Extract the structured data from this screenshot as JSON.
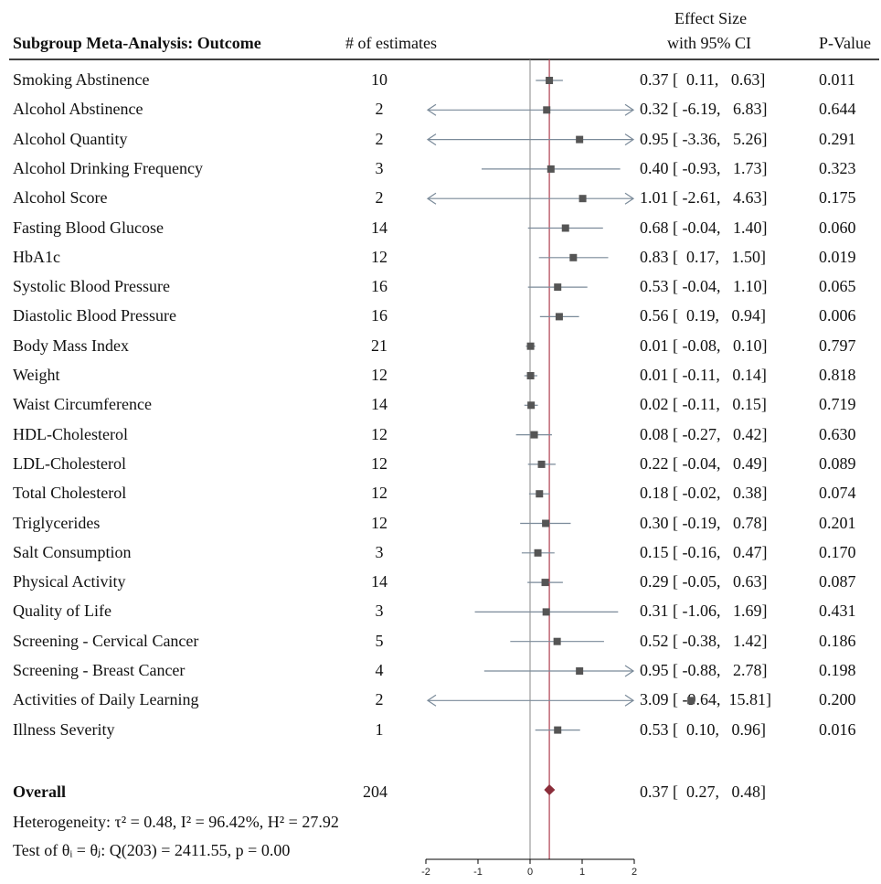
{
  "header": {
    "title": "Subgroup Meta-Analysis: Outcome",
    "n_label": "# of estimates",
    "es_label_1": "Effect Size",
    "es_label_2": "with 95% CI",
    "p_label": "P-Value"
  },
  "overall": {
    "label": "Overall",
    "n": "204",
    "ci_text": "0.37 [  0.27,   0.48]",
    "estimate": 0.37,
    "lower": 0.27,
    "upper": 0.48
  },
  "heterogeneity_text": "Heterogeneity: τ² = 0.48, I² = 96.42%, H² = 27.92",
  "test_text": "Test of θᵢ = θⱼ: Q(203) = 2411.55, p = 0.00",
  "colors": {
    "overall_line": "#b04050",
    "zero_line": "#888888",
    "marker": "#555555",
    "ci_line": "#7a8a99",
    "diamond": "#8b2d3a"
  },
  "chart_data": {
    "type": "forest",
    "xlim": [
      -2,
      2
    ],
    "xticks": [
      "-2",
      "-1",
      "0",
      "1",
      "2"
    ],
    "rows": [
      {
        "label": "Smoking Abstinence",
        "n": "10",
        "est": 0.37,
        "lo": 0.11,
        "hi": 0.63,
        "ci_text": "0.37 [  0.11,   0.63]",
        "p": "0.011"
      },
      {
        "label": "Alcohol Abstinence",
        "n": "2",
        "est": 0.32,
        "lo": -6.19,
        "hi": 6.83,
        "ci_text": "0.32 [ -6.19,   6.83]",
        "p": "0.644"
      },
      {
        "label": "Alcohol Quantity",
        "n": "2",
        "est": 0.95,
        "lo": -3.36,
        "hi": 5.26,
        "ci_text": "0.95 [ -3.36,   5.26]",
        "p": "0.291"
      },
      {
        "label": "Alcohol Drinking Frequency",
        "n": "3",
        "est": 0.4,
        "lo": -0.93,
        "hi": 1.73,
        "ci_text": "0.40 [ -0.93,   1.73]",
        "p": "0.323"
      },
      {
        "label": "Alcohol Score",
        "n": "2",
        "est": 1.01,
        "lo": -2.61,
        "hi": 4.63,
        "ci_text": "1.01 [ -2.61,   4.63]",
        "p": "0.175"
      },
      {
        "label": "Fasting Blood Glucose",
        "n": "14",
        "est": 0.68,
        "lo": -0.04,
        "hi": 1.4,
        "ci_text": "0.68 [ -0.04,   1.40]",
        "p": "0.060"
      },
      {
        "label": "HbA1c",
        "n": "12",
        "est": 0.83,
        "lo": 0.17,
        "hi": 1.5,
        "ci_text": "0.83 [  0.17,   1.50]",
        "p": "0.019"
      },
      {
        "label": "Systolic Blood Pressure",
        "n": "16",
        "est": 0.53,
        "lo": -0.04,
        "hi": 1.1,
        "ci_text": "0.53 [ -0.04,   1.10]",
        "p": "0.065"
      },
      {
        "label": "Diastolic Blood Pressure",
        "n": "16",
        "est": 0.56,
        "lo": 0.19,
        "hi": 0.94,
        "ci_text": "0.56 [  0.19,   0.94]",
        "p": "0.006"
      },
      {
        "label": "Body Mass Index",
        "n": "21",
        "est": 0.01,
        "lo": -0.08,
        "hi": 0.1,
        "ci_text": "0.01 [ -0.08,   0.10]",
        "p": "0.797"
      },
      {
        "label": "Weight",
        "n": "12",
        "est": 0.01,
        "lo": -0.11,
        "hi": 0.14,
        "ci_text": "0.01 [ -0.11,   0.14]",
        "p": "0.818"
      },
      {
        "label": "Waist Circumference",
        "n": "14",
        "est": 0.02,
        "lo": -0.11,
        "hi": 0.15,
        "ci_text": "0.02 [ -0.11,   0.15]",
        "p": "0.719"
      },
      {
        "label": "HDL-Cholesterol",
        "n": "12",
        "est": 0.08,
        "lo": -0.27,
        "hi": 0.42,
        "ci_text": "0.08 [ -0.27,   0.42]",
        "p": "0.630"
      },
      {
        "label": "LDL-Cholesterol",
        "n": "12",
        "est": 0.22,
        "lo": -0.04,
        "hi": 0.49,
        "ci_text": "0.22 [ -0.04,   0.49]",
        "p": "0.089"
      },
      {
        "label": "Total Cholesterol",
        "n": "12",
        "est": 0.18,
        "lo": -0.02,
        "hi": 0.38,
        "ci_text": "0.18 [ -0.02,   0.38]",
        "p": "0.074"
      },
      {
        "label": "Triglycerides",
        "n": "12",
        "est": 0.3,
        "lo": -0.19,
        "hi": 0.78,
        "ci_text": "0.30 [ -0.19,   0.78]",
        "p": "0.201"
      },
      {
        "label": "Salt Consumption",
        "n": "3",
        "est": 0.15,
        "lo": -0.16,
        "hi": 0.47,
        "ci_text": "0.15 [ -0.16,   0.47]",
        "p": "0.170"
      },
      {
        "label": "Physical Activity",
        "n": "14",
        "est": 0.29,
        "lo": -0.05,
        "hi": 0.63,
        "ci_text": "0.29 [ -0.05,   0.63]",
        "p": "0.087"
      },
      {
        "label": "Quality of Life",
        "n": "3",
        "est": 0.31,
        "lo": -1.06,
        "hi": 1.69,
        "ci_text": "0.31 [ -1.06,   1.69]",
        "p": "0.431"
      },
      {
        "label": "Screening - Cervical Cancer",
        "n": "5",
        "est": 0.52,
        "lo": -0.38,
        "hi": 1.42,
        "ci_text": "0.52 [ -0.38,   1.42]",
        "p": "0.186"
      },
      {
        "label": "Screening - Breast Cancer",
        "n": "4",
        "est": 0.95,
        "lo": -0.88,
        "hi": 2.78,
        "ci_text": "0.95 [ -0.88,   2.78]",
        "p": "0.198"
      },
      {
        "label": "Activities of Daily Learning",
        "n": "2",
        "est": 3.09,
        "lo": -9.64,
        "hi": 15.81,
        "ci_text": "3.09 [ -9.64,  15.81]",
        "p": "0.200"
      },
      {
        "label": "Illness Severity",
        "n": "1",
        "est": 0.53,
        "lo": 0.1,
        "hi": 0.96,
        "ci_text": "0.53 [  0.10,   0.96]",
        "p": "0.016"
      }
    ]
  }
}
